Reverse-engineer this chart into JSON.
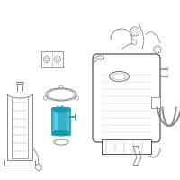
{
  "bg_color": "#ffffff",
  "line_color": "#888888",
  "line_color_dark": "#555555",
  "highlight_color": "#1a9ab0",
  "highlight_color2": "#4bbdd0",
  "highlight_color3": "#2ab0c8",
  "fig_width": 2.0,
  "fig_height": 2.0,
  "dpi": 100
}
